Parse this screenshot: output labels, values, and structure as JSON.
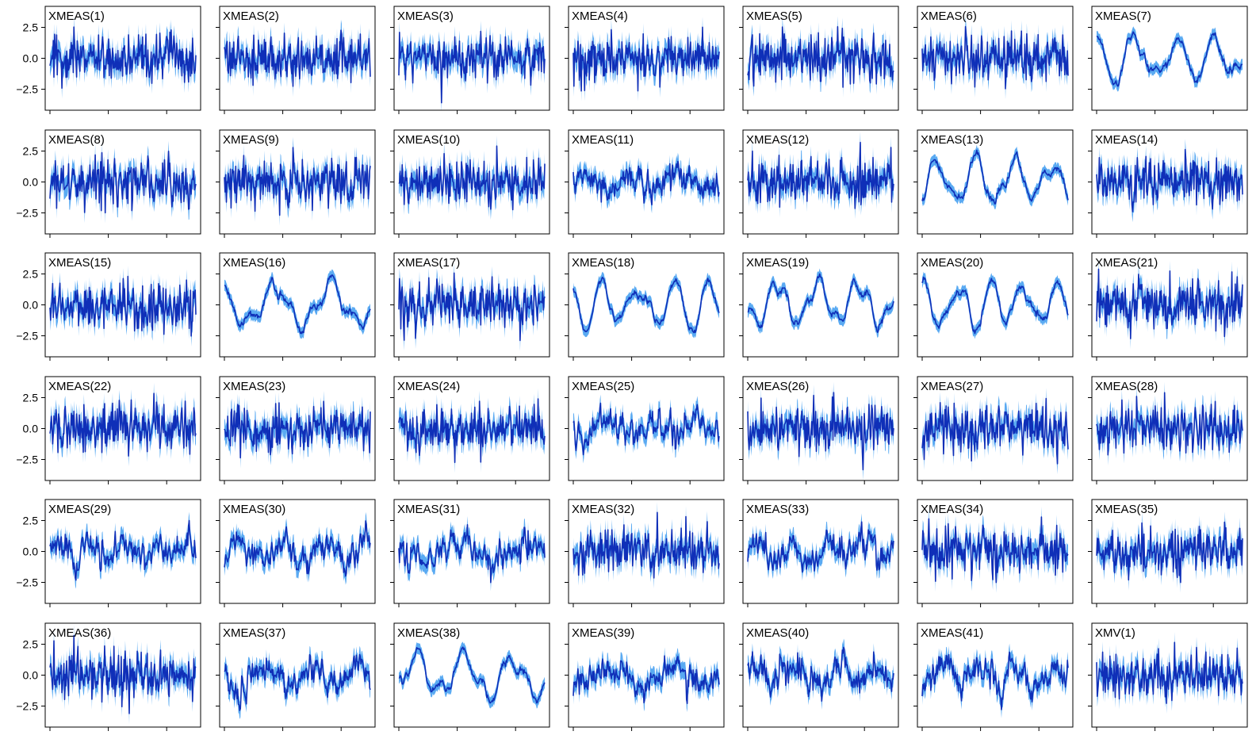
{
  "chart_data": {
    "type": "line",
    "layout": "grid of small multiples, 6 rows x 7 columns (rightmost column cropped)",
    "panels": [
      "XMEAS(1)",
      "XMEAS(2)",
      "XMEAS(3)",
      "XMEAS(4)",
      "XMEAS(5)",
      "XMEAS(6)",
      "XMEAS(7)",
      "XMEAS(8)",
      "XMEAS(9)",
      "XMEAS(10)",
      "XMEAS(11)",
      "XMEAS(12)",
      "XMEAS(13)",
      "XMEAS(14)",
      "XMEAS(15)",
      "XMEAS(16)",
      "XMEAS(17)",
      "XMEAS(18)",
      "XMEAS(19)",
      "XMEAS(20)",
      "XMEAS(21)",
      "XMEAS(22)",
      "XMEAS(23)",
      "XMEAS(24)",
      "XMEAS(25)",
      "XMEAS(26)",
      "XMEAS(27)",
      "XMEAS(28)",
      "XMEAS(29)",
      "XMEAS(30)",
      "XMEAS(31)",
      "XMEAS(32)",
      "XMEAS(33)",
      "XMEAS(34)",
      "XMEAS(35)",
      "XMEAS(36)",
      "XMEAS(37)",
      "XMEAS(38)",
      "XMEAS(39)",
      "XMEAS(40)",
      "XMEAS(41)",
      "XMV(1)"
    ],
    "series_colors": {
      "band": "#5aaaf2",
      "line": "#0f2fb8"
    },
    "y_ticks": [
      2.5,
      0.0,
      -2.5
    ],
    "y_tick_labels": [
      "2.5",
      "0.0",
      "−2.5"
    ],
    "ylim": [
      -4.2,
      4.2
    ],
    "x_range": [
      0,
      1
    ],
    "x_ticks": [
      0,
      0.4,
      0.8
    ],
    "x_tick_labels_visible": false,
    "grid": false,
    "series_style": {
      "smooth": [
        "XMEAS(7)",
        "XMEAS(13)",
        "XMEAS(16)",
        "XMEAS(18)",
        "XMEAS(19)",
        "XMEAS(20)",
        "XMEAS(38)"
      ],
      "medium": [
        "XMEAS(11)",
        "XMEAS(25)",
        "XMEAS(29)",
        "XMEAS(30)",
        "XMEAS(31)",
        "XMEAS(33)",
        "XMEAS(37)",
        "XMEAS(39)",
        "XMEAS(40)",
        "XMEAS(41)"
      ],
      "default": "noisy"
    }
  }
}
